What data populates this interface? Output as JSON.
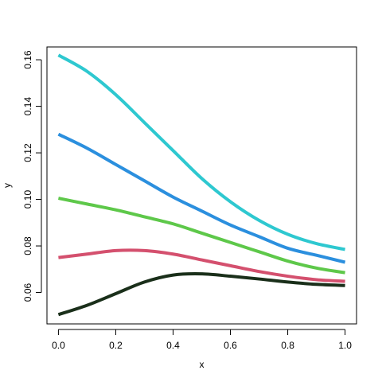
{
  "chart_data": {
    "type": "line",
    "xlabel": "x",
    "ylabel": "y",
    "xlim": [
      -0.04,
      1.04
    ],
    "ylim": [
      0.0465,
      0.1655
    ],
    "x_ticks": [
      0.0,
      0.2,
      0.4,
      0.6,
      0.8,
      1.0
    ],
    "x_tick_labels": [
      "0.0",
      "0.2",
      "0.4",
      "0.6",
      "0.8",
      "1.0"
    ],
    "y_ticks": [
      0.06,
      0.08,
      0.1,
      0.12,
      0.14,
      0.16
    ],
    "y_tick_labels": [
      "0.06",
      "0.08",
      "0.10",
      "0.12",
      "0.14",
      "0.16"
    ],
    "grid": false,
    "x": [
      0.0,
      0.1,
      0.2,
      0.3,
      0.4,
      0.5,
      0.6,
      0.7,
      0.8,
      0.9,
      1.0
    ],
    "series": [
      {
        "color": "#2ec8d0",
        "values": [
          0.162,
          0.155,
          0.145,
          0.133,
          0.121,
          0.109,
          0.099,
          0.091,
          0.085,
          0.081,
          0.0785
        ]
      },
      {
        "color": "#2b8fde",
        "values": [
          0.128,
          0.122,
          0.115,
          0.108,
          0.101,
          0.095,
          0.089,
          0.084,
          0.079,
          0.076,
          0.073
        ]
      },
      {
        "color": "#5ec84a",
        "values": [
          0.1005,
          0.098,
          0.0955,
          0.0925,
          0.0895,
          0.0855,
          0.0815,
          0.0775,
          0.0735,
          0.0705,
          0.0685
        ]
      },
      {
        "color": "#d4506e",
        "values": [
          0.075,
          0.0765,
          0.078,
          0.078,
          0.0765,
          0.074,
          0.0715,
          0.069,
          0.067,
          0.0655,
          0.0648
        ]
      },
      {
        "color": "#1a2f1a",
        "values": [
          0.0505,
          0.0545,
          0.0595,
          0.0645,
          0.0675,
          0.068,
          0.067,
          0.0658,
          0.0645,
          0.0635,
          0.063
        ]
      }
    ]
  }
}
